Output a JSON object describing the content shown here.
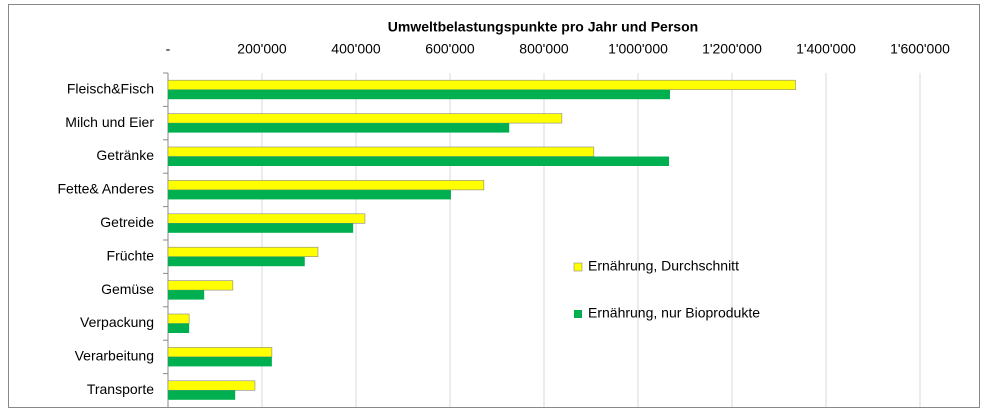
{
  "chart_data": {
    "type": "bar",
    "orientation": "horizontal",
    "title": "Umweltbelastungspunkte pro Jahr und Person",
    "categories": [
      "Fleisch&Fisch",
      "Milch und Eier",
      "Getränke",
      "Fette& Anderes",
      "Getreide",
      "Früchte",
      "Gemüse",
      "Verpackung",
      "Verarbeitung",
      "Transporte"
    ],
    "series": [
      {
        "name": "Ernährung, Durchschnitt",
        "color": "#ffff00",
        "values": [
          1335000,
          838000,
          906000,
          672000,
          419000,
          319000,
          138000,
          45000,
          221000,
          185000
        ]
      },
      {
        "name": "Ernährung, nur Bioprodukte",
        "color": "#00b050",
        "values": [
          1068000,
          726000,
          1066000,
          602000,
          394000,
          291000,
          77000,
          45000,
          221000,
          143000
        ]
      }
    ],
    "xlim": [
      0,
      1600000
    ],
    "xticks": [
      {
        "value": 0,
        "label": "-"
      },
      {
        "value": 200000,
        "label": "200'000"
      },
      {
        "value": 400000,
        "label": "400'000"
      },
      {
        "value": 600000,
        "label": "600'000"
      },
      {
        "value": 800000,
        "label": "800'000"
      },
      {
        "value": 1000000,
        "label": "1'000'000"
      },
      {
        "value": 1200000,
        "label": "1'200'000"
      },
      {
        "value": 1400000,
        "label": "1'400'000"
      },
      {
        "value": 1600000,
        "label": "1'600'000"
      }
    ],
    "grid": true,
    "legend": "right"
  }
}
